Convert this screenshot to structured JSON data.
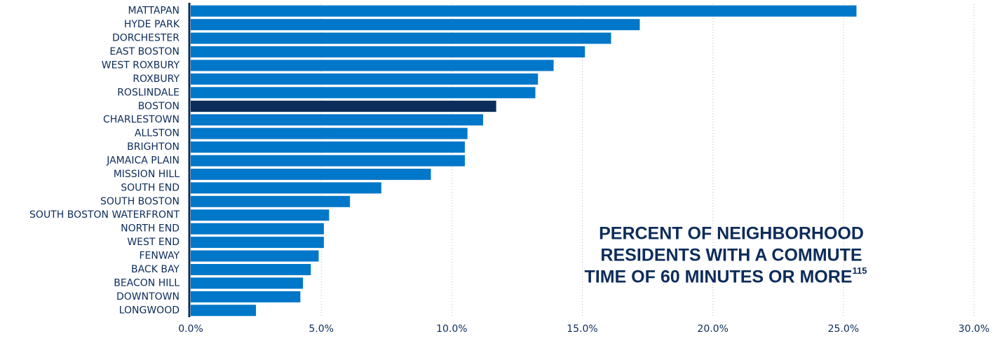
{
  "chart_data": {
    "type": "bar",
    "orientation": "horizontal",
    "title": [
      "PERCENT OF NEIGHBORHOOD",
      "RESIDENTS WITH A COMMUTE",
      "TIME OF 60 MINUTES OR MORE"
    ],
    "title_superscript": "115",
    "categories": [
      "MATTAPAN",
      "HYDE PARK",
      "DORCHESTER",
      "EAST BOSTON",
      "WEST ROXBURY",
      "ROXBURY",
      "ROSLINDALE",
      "BOSTON",
      "CHARLESTOWN",
      "ALLSTON",
      "BRIGHTON",
      "JAMAICA PLAIN",
      "MISSION HILL",
      "SOUTH END",
      "SOUTH BOSTON",
      "SOUTH BOSTON WATERFRONT",
      "NORTH END",
      "WEST END",
      "FENWAY",
      "BACK BAY",
      "BEACON HILL",
      "DOWNTOWN",
      "LONGWOOD"
    ],
    "values": [
      25.5,
      17.2,
      16.1,
      15.1,
      13.9,
      13.3,
      13.2,
      11.7,
      11.2,
      10.6,
      10.5,
      10.5,
      9.2,
      7.3,
      6.1,
      5.3,
      5.1,
      5.1,
      4.9,
      4.6,
      4.3,
      4.2,
      2.5
    ],
    "colors": [
      "#0077c8",
      "#0077c8",
      "#0077c8",
      "#0077c8",
      "#0077c8",
      "#0077c8",
      "#0077c8",
      "#0c2c5a",
      "#0077c8",
      "#0077c8",
      "#0077c8",
      "#0077c8",
      "#0077c8",
      "#0077c8",
      "#0077c8",
      "#0077c8",
      "#0077c8",
      "#0077c8",
      "#0077c8",
      "#0077c8",
      "#0077c8",
      "#0077c8",
      "#0077c8"
    ],
    "xlim": [
      0,
      30
    ],
    "xticks": [
      {
        "value": 0,
        "label": "0.0%"
      },
      {
        "value": 5,
        "label": "5.0%"
      },
      {
        "value": 10,
        "label": "10.0%"
      },
      {
        "value": 15,
        "label": "15.0%"
      },
      {
        "value": 20,
        "label": "20.0%"
      },
      {
        "value": 25,
        "label": "25.0%"
      },
      {
        "value": 30,
        "label": "30.0%"
      }
    ],
    "grid": true
  }
}
